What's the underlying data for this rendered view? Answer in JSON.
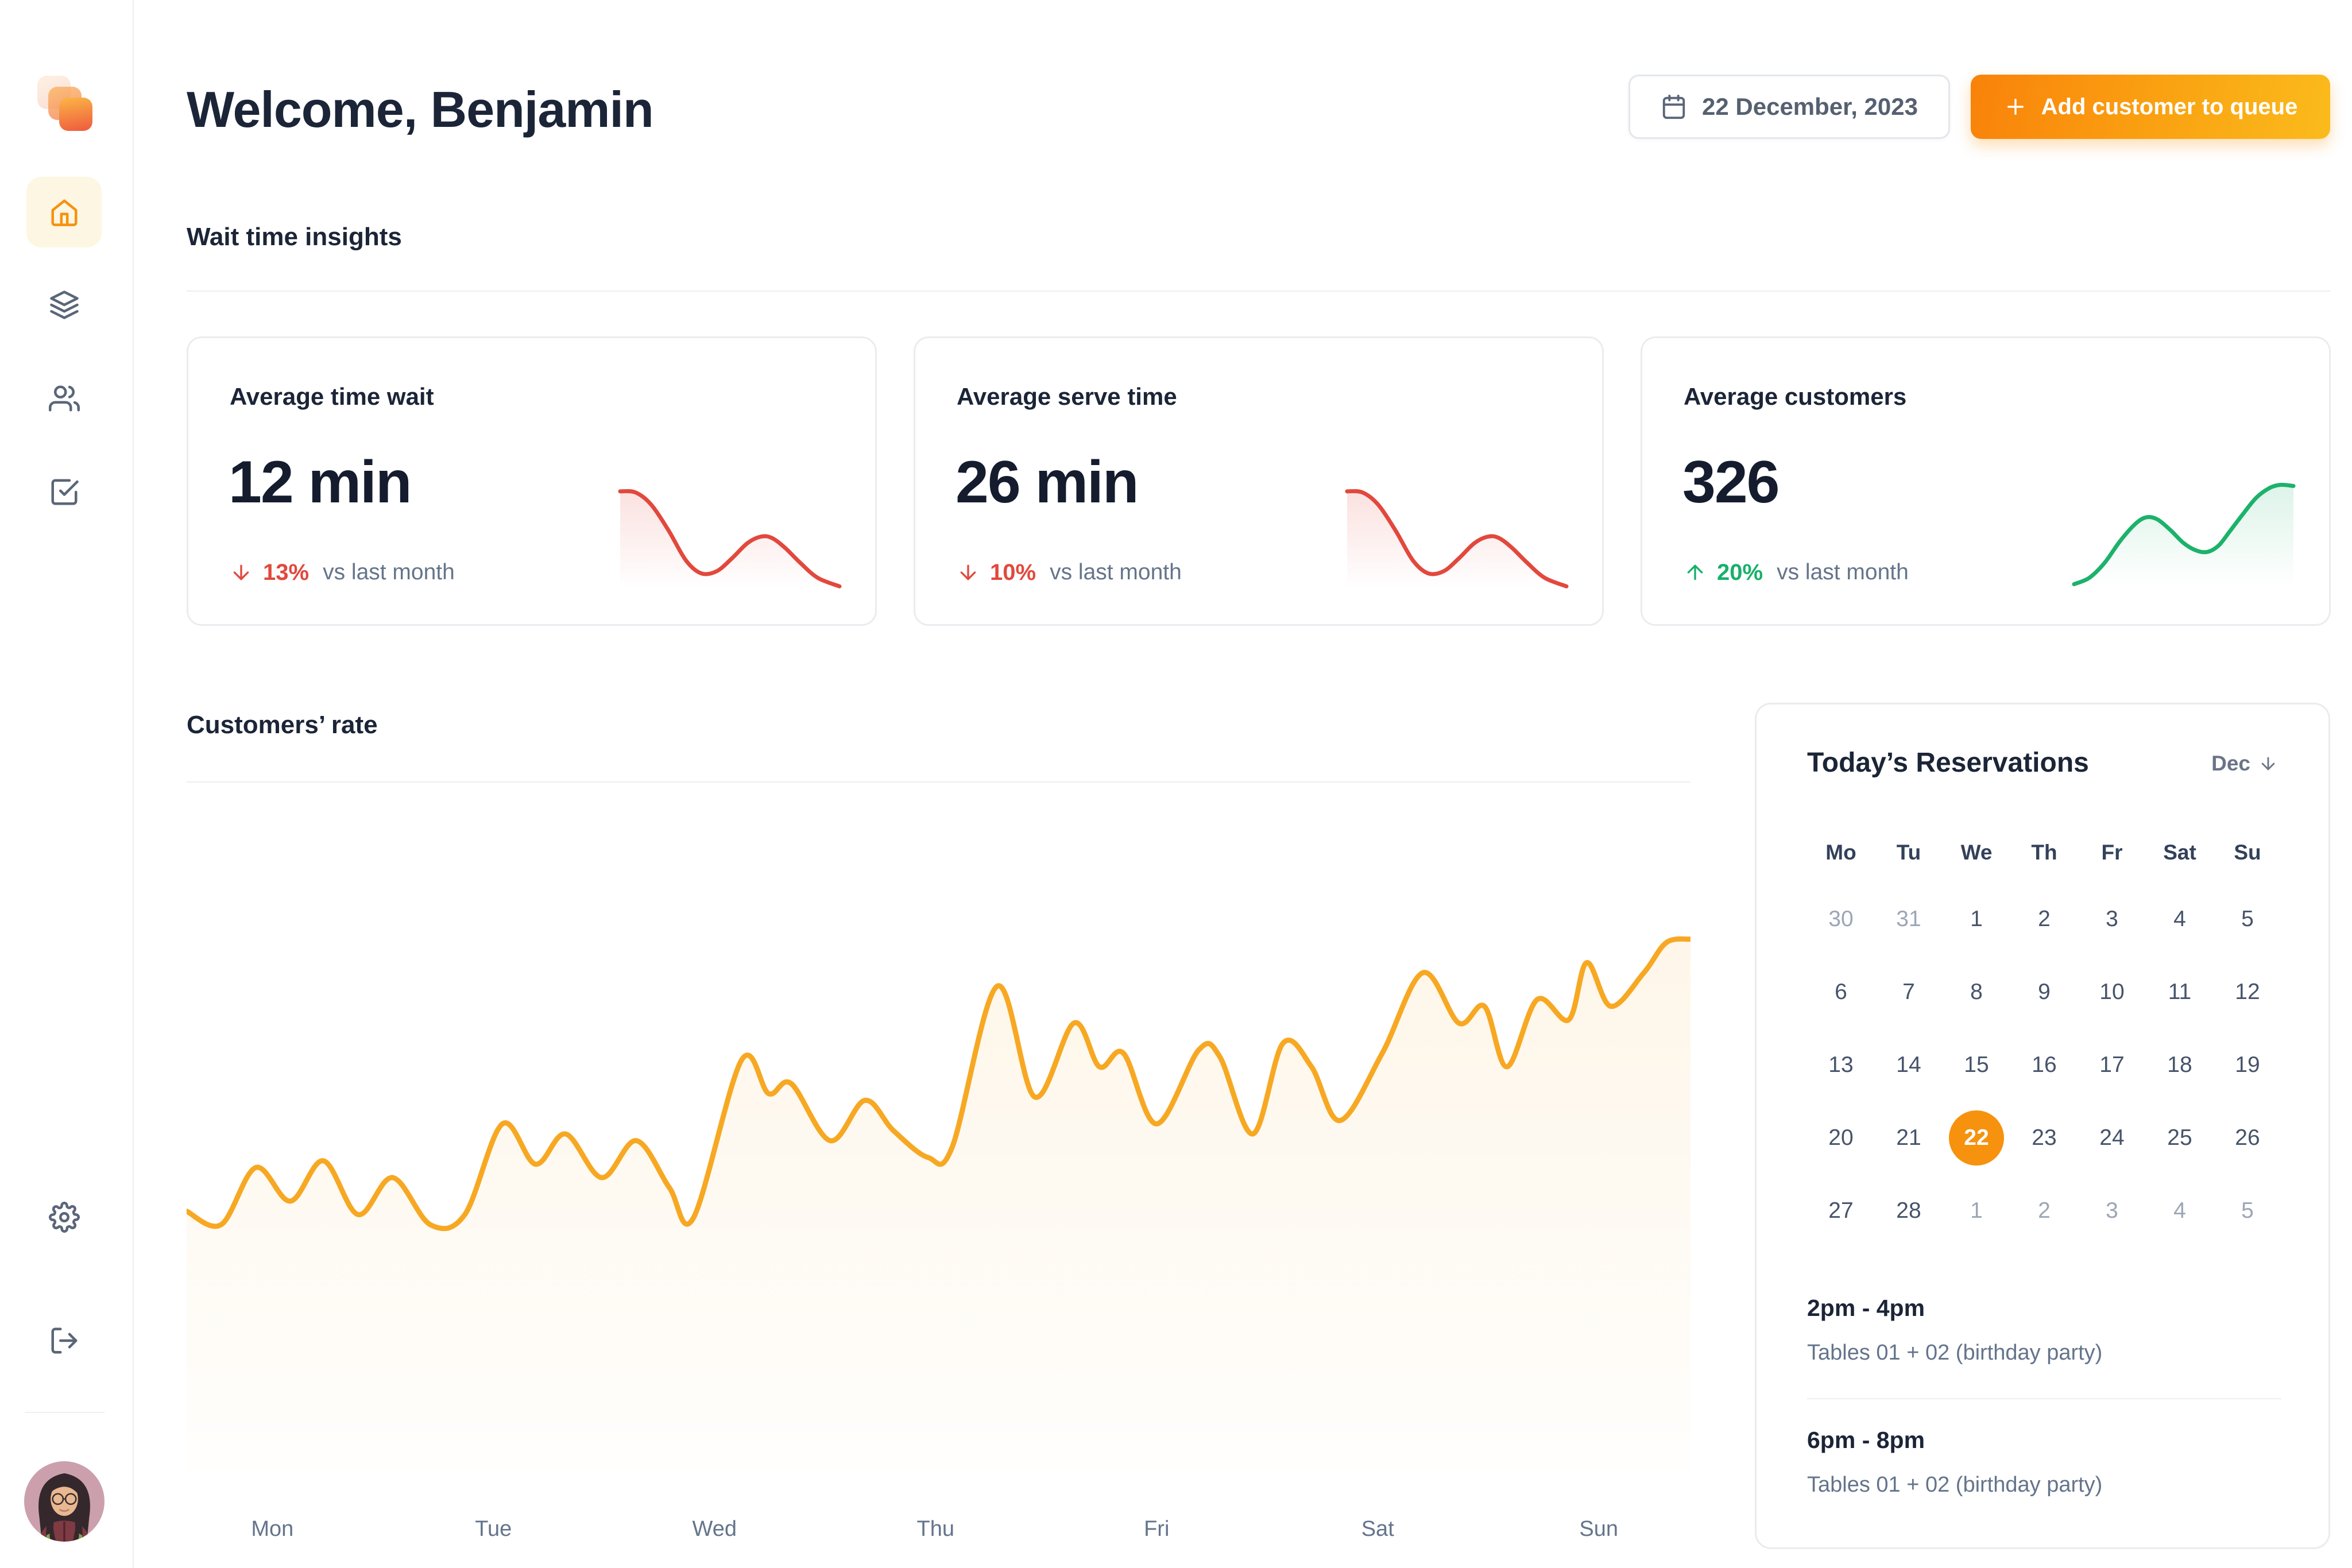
{
  "header": {
    "title": "Welcome, Benjamin",
    "date_button": {
      "label": "22 December, 2023",
      "icon": "calendar-icon"
    },
    "add_button": {
      "label": "Add customer to queue",
      "icon": "plus-icon"
    }
  },
  "sidebar": {
    "logo": "app-logo",
    "nav_items": [
      {
        "icon": "home-icon",
        "active": true
      },
      {
        "icon": "layers-icon",
        "active": false
      },
      {
        "icon": "users-icon",
        "active": false
      },
      {
        "icon": "check-square-icon",
        "active": false
      }
    ],
    "footer_items": [
      {
        "icon": "gear-icon"
      },
      {
        "icon": "logout-icon"
      }
    ],
    "avatar": "user-avatar-photo"
  },
  "insights": {
    "section_title": "Wait time insights",
    "cards": [
      {
        "title": "Average time wait",
        "value": "12 min",
        "delta": "13%",
        "direction": "down",
        "comparison": "vs last month",
        "spark_index": 1
      },
      {
        "title": "Average serve time",
        "value": "26 min",
        "delta": "10%",
        "direction": "down",
        "comparison": "vs last month",
        "spark_index": 2
      },
      {
        "title": "Average customers",
        "value": "326",
        "delta": "20%",
        "direction": "up",
        "comparison": "vs last month",
        "spark_index": 3
      }
    ]
  },
  "chart_section": {
    "title": "Customers’ rate"
  },
  "chart_data": [
    {
      "id": "customers-rate",
      "type": "area",
      "title": "Customers' rate",
      "x_categories": [
        "Mon",
        "Tue",
        "Wed",
        "Thu",
        "Fri",
        "Sat",
        "Sun"
      ],
      "x_label_fractions": [
        5.7,
        20.4,
        35.1,
        49.8,
        64.5,
        79.2,
        93.9
      ],
      "y_axis": {
        "visible": false,
        "note": "unlabeled, values are percent of plot height (0=top,100=bottom)"
      },
      "line_color": "#F7A823",
      "fill_top": "rgba(246,167,35,0.10)",
      "fill_bottom": "rgba(246,167,35,0.01)",
      "stroke_width": 9,
      "points_pct": [
        [
          0,
          61.5
        ],
        [
          2.3,
          63.5
        ],
        [
          4.6,
          55
        ],
        [
          6.9,
          60
        ],
        [
          9.1,
          54
        ],
        [
          11.4,
          62
        ],
        [
          13.7,
          56.5
        ],
        [
          16.2,
          63.5
        ],
        [
          18.5,
          62
        ],
        [
          21,
          48.5
        ],
        [
          23.2,
          54.5
        ],
        [
          25.2,
          50
        ],
        [
          27.6,
          56.5
        ],
        [
          29.9,
          51
        ],
        [
          32.1,
          58
        ],
        [
          33.7,
          62.5
        ],
        [
          36.9,
          39
        ],
        [
          38.7,
          44
        ],
        [
          40.2,
          42.5
        ],
        [
          42.8,
          51
        ],
        [
          45.1,
          45
        ],
        [
          47,
          49.5
        ],
        [
          49.3,
          53.5
        ],
        [
          50.9,
          52
        ],
        [
          53.9,
          28
        ],
        [
          56.4,
          44.5
        ],
        [
          59,
          33.5
        ],
        [
          60.7,
          40
        ],
        [
          62.3,
          38
        ],
        [
          64.5,
          48.5
        ],
        [
          67.3,
          37.5
        ],
        [
          68.7,
          38.5
        ],
        [
          70.9,
          50
        ],
        [
          72.9,
          36.5
        ],
        [
          74.8,
          40
        ],
        [
          76.7,
          48
        ],
        [
          79.5,
          38
        ],
        [
          82.2,
          26
        ],
        [
          84.6,
          33.5
        ],
        [
          86.3,
          31
        ],
        [
          87.8,
          40
        ],
        [
          89.8,
          30
        ],
        [
          91.9,
          33
        ],
        [
          93.1,
          24.5
        ],
        [
          94.7,
          31
        ],
        [
          96.9,
          26
        ],
        [
          98.4,
          21.5
        ],
        [
          100,
          21
        ]
      ]
    },
    {
      "id": "avg-time-wait-trend",
      "type": "line",
      "trend": "declining",
      "line_color": "#E2483D",
      "fill_top": "rgba(226,72,61,0.16)",
      "fill_bottom": "rgba(226,72,61,0.0)",
      "stroke_width": 7,
      "points_pct": [
        [
          0,
          10
        ],
        [
          7,
          11
        ],
        [
          14,
          22
        ],
        [
          22,
          46
        ],
        [
          30,
          74
        ],
        [
          37,
          86
        ],
        [
          44,
          84
        ],
        [
          51,
          72
        ],
        [
          58,
          58
        ],
        [
          64,
          52
        ],
        [
          69,
          53
        ],
        [
          75,
          62
        ],
        [
          82,
          76
        ],
        [
          90,
          90
        ],
        [
          100,
          98
        ]
      ]
    },
    {
      "id": "avg-serve-time-trend",
      "type": "line",
      "trend": "declining",
      "line_color": "#E2483D",
      "fill_top": "rgba(226,72,61,0.16)",
      "fill_bottom": "rgba(226,72,61,0.0)",
      "stroke_width": 7,
      "points_pct": [
        [
          0,
          10
        ],
        [
          7,
          11
        ],
        [
          14,
          22
        ],
        [
          22,
          46
        ],
        [
          30,
          74
        ],
        [
          37,
          86
        ],
        [
          44,
          84
        ],
        [
          51,
          72
        ],
        [
          58,
          58
        ],
        [
          64,
          52
        ],
        [
          69,
          53
        ],
        [
          75,
          62
        ],
        [
          82,
          76
        ],
        [
          90,
          90
        ],
        [
          100,
          98
        ]
      ]
    },
    {
      "id": "avg-customers-trend",
      "type": "line",
      "trend": "rising",
      "line_color": "#1CB26B",
      "fill_top": "rgba(28,178,107,0.15)",
      "fill_bottom": "rgba(28,178,107,0.0)",
      "stroke_width": 7,
      "points_pct": [
        [
          0,
          96
        ],
        [
          7,
          90
        ],
        [
          14,
          76
        ],
        [
          21,
          56
        ],
        [
          28,
          40
        ],
        [
          33,
          34
        ],
        [
          38,
          36
        ],
        [
          44,
          46
        ],
        [
          50,
          58
        ],
        [
          56,
          65
        ],
        [
          61,
          66
        ],
        [
          66,
          60
        ],
        [
          71,
          47
        ],
        [
          77,
          31
        ],
        [
          83,
          16
        ],
        [
          89,
          7
        ],
        [
          94,
          4
        ],
        [
          100,
          5
        ]
      ]
    }
  ],
  "reservations": {
    "title": "Today’s Reservations",
    "month_label": "Dec",
    "weekdays": [
      "Mo",
      "Tu",
      "We",
      "Th",
      "Fr",
      "Sat",
      "Su"
    ],
    "selected_day": "22",
    "weeks": [
      [
        {
          "d": "30",
          "muted": true
        },
        {
          "d": "31",
          "muted": true
        },
        {
          "d": "1"
        },
        {
          "d": "2"
        },
        {
          "d": "3"
        },
        {
          "d": "4"
        },
        {
          "d": "5"
        }
      ],
      [
        {
          "d": "6"
        },
        {
          "d": "7"
        },
        {
          "d": "8"
        },
        {
          "d": "9"
        },
        {
          "d": "10"
        },
        {
          "d": "11"
        },
        {
          "d": "12"
        }
      ],
      [
        {
          "d": "13"
        },
        {
          "d": "14"
        },
        {
          "d": "15"
        },
        {
          "d": "16"
        },
        {
          "d": "17"
        },
        {
          "d": "18"
        },
        {
          "d": "19"
        }
      ],
      [
        {
          "d": "20"
        },
        {
          "d": "21"
        },
        {
          "d": "22",
          "selected": true
        },
        {
          "d": "23"
        },
        {
          "d": "24"
        },
        {
          "d": "25"
        },
        {
          "d": "26"
        }
      ],
      [
        {
          "d": "27"
        },
        {
          "d": "28"
        },
        {
          "d": "1",
          "muted": true
        },
        {
          "d": "2",
          "muted": true
        },
        {
          "d": "3",
          "muted": true
        },
        {
          "d": "4",
          "muted": true
        },
        {
          "d": "5",
          "muted": true
        }
      ]
    ],
    "entries": [
      {
        "time": "2pm - 4pm",
        "detail": "Tables 01 + 02 (birthday party)"
      },
      {
        "time": "6pm - 8pm",
        "detail": "Tables 01 + 02 (birthday party)"
      }
    ]
  },
  "colors": {
    "accent_orange": "#F6920E",
    "amber_line": "#F7A823",
    "negative_red": "#E2483D",
    "positive_green": "#17B06A",
    "navy_text": "#1B2537",
    "gray_text": "#64748B",
    "muted_text": "#9CA6B6",
    "border": "#E9EBEF",
    "active_nav_bg": "#FDF6E3",
    "button_gradient": [
      "#F9820A",
      "#FBBB1C"
    ]
  }
}
